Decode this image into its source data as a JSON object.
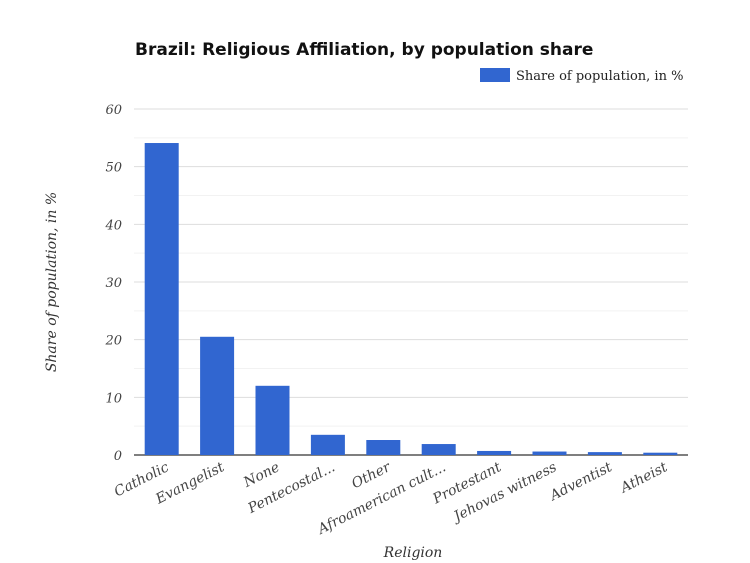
{
  "chart_data": {
    "type": "bar",
    "title": "Brazil: Religious Affiliation, by population share",
    "xlabel": "Religion",
    "ylabel": "Share of population, in %",
    "ylim": [
      0,
      60
    ],
    "yticks": [
      0,
      10,
      20,
      30,
      40,
      50,
      60
    ],
    "grid": true,
    "legend_position": "top-right",
    "categories": [
      "Catholic",
      "Evangelist",
      "None",
      "Pentecostal...",
      "Other",
      "Afroamerican cult...",
      "Protestant",
      "Jehovas witness",
      "Adventist",
      "Atheist"
    ],
    "series": [
      {
        "name": "Share of population, in %",
        "color": "#3166d0",
        "values": [
          54.1,
          20.5,
          12.0,
          3.5,
          2.6,
          1.9,
          0.7,
          0.6,
          0.5,
          0.4
        ]
      }
    ]
  }
}
